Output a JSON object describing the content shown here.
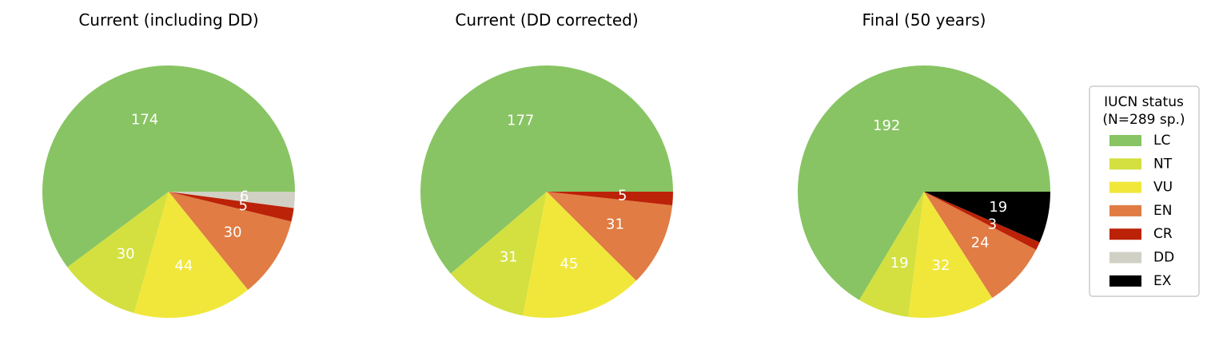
{
  "chart_data": [
    {
      "type": "pie",
      "title": "Current (including DD)",
      "categories": [
        "LC",
        "NT",
        "VU",
        "EN",
        "CR",
        "DD"
      ],
      "values": [
        174,
        30,
        44,
        30,
        5,
        6
      ],
      "labels": [
        "174",
        "30",
        "44",
        "30",
        "5",
        "6"
      ],
      "start_angle": "3 o'clock, counterclockwise"
    },
    {
      "type": "pie",
      "title": "Current (DD corrected)",
      "categories": [
        "LC",
        "NT",
        "VU",
        "EN",
        "CR"
      ],
      "values": [
        177,
        31,
        45,
        31,
        5
      ],
      "labels": [
        "177",
        "31",
        "45",
        "31",
        "5"
      ],
      "start_angle": "3 o'clock, counterclockwise"
    },
    {
      "type": "pie",
      "title": "Final (50 years)",
      "categories": [
        "LC",
        "NT",
        "VU",
        "EN",
        "CR",
        "EX"
      ],
      "values": [
        192,
        19,
        32,
        24,
        3,
        19
      ],
      "labels": [
        "192",
        "19",
        "32",
        "24",
        "3",
        "19"
      ],
      "start_angle": "3 o'clock, counterclockwise"
    }
  ],
  "legend": {
    "title_line1": "IUCN status",
    "title_line2": "(N=289 sp.)",
    "placement": "right",
    "items": [
      {
        "label": "LC",
        "color": "#88c463"
      },
      {
        "label": "NT",
        "color": "#d3e040"
      },
      {
        "label": "VU",
        "color": "#f1e73a"
      },
      {
        "label": "EN",
        "color": "#e07c44"
      },
      {
        "label": "CR",
        "color": "#bc2208"
      },
      {
        "label": "DD",
        "color": "#d0d0c4"
      },
      {
        "label": "EX",
        "color": "#000000"
      }
    ]
  }
}
